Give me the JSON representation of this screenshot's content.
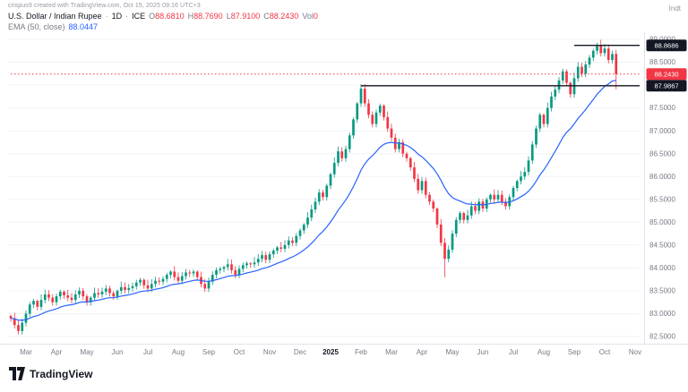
{
  "page": {
    "watermark_top": "crispus9 created with TradingView.com, Oct 15, 2025 09:16 UTC+3",
    "top_right_label": "Indt",
    "logo_text": "TradingView"
  },
  "legend": {
    "symbol": "U.S. Dollar / Indian Rupee",
    "separator": "·",
    "interval": "1D",
    "exchange": "ICE",
    "ohlc": [
      {
        "k": "O",
        "v": "88.6810"
      },
      {
        "k": "H",
        "v": "88.7690"
      },
      {
        "k": "L",
        "v": "87.9100"
      },
      {
        "k": "C",
        "v": "88.2430"
      }
    ],
    "vol_label": "Vol",
    "vol_value": "0",
    "ema_label": "EMA (50, close)",
    "ema_value": "88.0447"
  },
  "chart_data": {
    "type": "candlestick",
    "symbol": "USD/INR",
    "timeframe": "1D",
    "x_axis_months": [
      "Mar",
      "Apr",
      "May",
      "Jun",
      "Jul",
      "Aug",
      "Sep",
      "Oct",
      "Nov",
      "Dec",
      "2025",
      "Feb",
      "Mar",
      "Apr",
      "May",
      "Jun",
      "Jul",
      "Aug",
      "Sep",
      "Oct",
      "Nov"
    ],
    "candles_per_month": 8,
    "y_axis": {
      "min": 82.5,
      "max": 89.0,
      "step": 0.5,
      "decimals": 4
    },
    "first_open": 82.95,
    "closes": [
      82.9,
      82.75,
      82.62,
      82.8,
      83.0,
      83.2,
      83.28,
      83.15,
      83.3,
      83.42,
      83.35,
      83.25,
      83.38,
      83.48,
      83.4,
      83.35,
      83.3,
      83.42,
      83.5,
      83.38,
      83.25,
      83.35,
      83.45,
      83.42,
      83.48,
      83.55,
      83.45,
      83.38,
      83.5,
      83.58,
      83.52,
      83.56,
      83.6,
      83.68,
      83.74,
      83.62,
      83.55,
      83.65,
      83.72,
      83.7,
      83.76,
      83.85,
      83.92,
      83.8,
      83.72,
      83.82,
      83.9,
      83.88,
      83.92,
      83.8,
      83.65,
      83.55,
      83.7,
      83.85,
      83.95,
      83.98,
      84.02,
      84.08,
      83.95,
      83.85,
      83.98,
      84.06,
      84.1,
      84.08,
      84.12,
      84.2,
      84.28,
      84.18,
      84.3,
      84.38,
      84.45,
      84.42,
      84.5,
      84.6,
      84.55,
      84.7,
      84.82,
      84.95,
      85.1,
      85.28,
      85.45,
      85.65,
      85.55,
      85.8,
      86.05,
      86.3,
      86.55,
      86.4,
      86.6,
      86.9,
      87.25,
      87.6,
      87.92,
      87.6,
      87.35,
      87.15,
      87.4,
      87.55,
      87.3,
      87.05,
      86.85,
      86.6,
      86.75,
      86.5,
      86.4,
      86.2,
      85.95,
      85.7,
      85.9,
      85.6,
      85.45,
      85.3,
      84.95,
      84.55,
      84.2,
      84.4,
      84.75,
      85.05,
      85.2,
      85.05,
      85.15,
      85.35,
      85.25,
      85.45,
      85.3,
      85.5,
      85.6,
      85.5,
      85.6,
      85.45,
      85.35,
      85.55,
      85.75,
      85.9,
      86.0,
      86.1,
      86.35,
      86.7,
      87.05,
      87.35,
      87.15,
      87.5,
      87.75,
      87.9,
      88.1,
      88.3,
      88.05,
      87.8,
      88.15,
      88.4,
      88.25,
      88.45,
      88.6,
      88.75,
      88.87,
      88.7,
      88.8,
      88.55,
      88.68,
      88.24
    ],
    "overrides": {
      "92": {
        "h": 88.02
      },
      "114": {
        "l": 83.8
      },
      "154": {
        "h": 88.93
      },
      "159": {
        "o": 88.68,
        "h": 88.77,
        "l": 87.91,
        "c": 88.24
      }
    },
    "ema": {
      "label": "EMA (50, close)",
      "period_equivalent": 20,
      "value_display": "88.0447",
      "color": "#2962ff"
    },
    "price_lines": [
      {
        "price": 88.8686,
        "label": "88.8686",
        "style": "solid",
        "color": "#131722",
        "start_index": 148
      },
      {
        "price": 87.9867,
        "label": "87.9867",
        "style": "solid",
        "color": "#131722",
        "start_index": 92
      },
      {
        "price": 88.243,
        "label": "88.2430",
        "style": "dotted",
        "color": "#f23645",
        "start_index": 0
      }
    ],
    "colors": {
      "up": "#089981",
      "down": "#f23645",
      "grid": "#f0f3fa",
      "axis_text": "#787b86",
      "axis_line": "#e0e3eb"
    }
  }
}
